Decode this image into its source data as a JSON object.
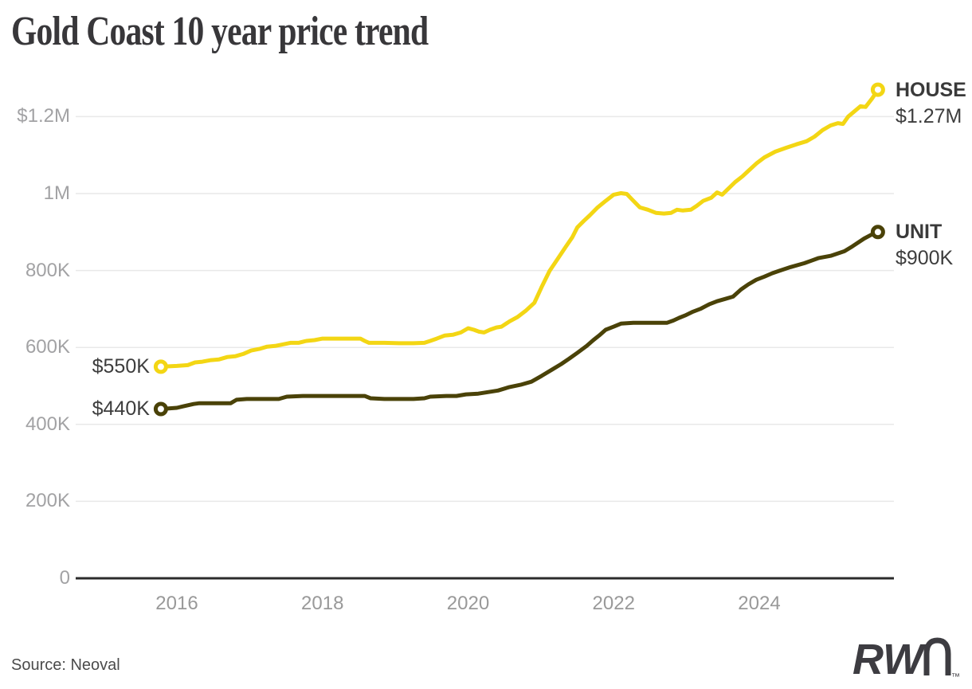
{
  "title": "Gold Coast 10 year price trend",
  "source": "Source: Neoval",
  "logo": {
    "text_bold": "RW",
    "text_light": "n",
    "trademark": "™"
  },
  "colors": {
    "house": "#f3d614",
    "unit": "#4a4208",
    "grid": "#e9e9e9",
    "axis": "#2b2b2b",
    "tick_text": "#a2a2a4",
    "label_text": "#3d3d3d",
    "title_text": "#38373a",
    "logo_text": "#3d3c41",
    "background": "#ffffff"
  },
  "chart_data": {
    "type": "line",
    "title": "Gold Coast 10 year price trend",
    "xlabel": "",
    "ylabel": "",
    "value_unit": "thousands of dollars",
    "grid": "horizontal-only",
    "legend_position": "inline-at-line-ends",
    "x_axis": {
      "range": [
        2015.7,
        2025.8
      ],
      "ticks": [
        2016,
        2018,
        2020,
        2022,
        2024
      ]
    },
    "y_axis": {
      "range": [
        0,
        1300
      ],
      "ticks": [
        {
          "label": "$1.2M",
          "value": 1200
        },
        {
          "label": "1M",
          "value": 1000
        },
        {
          "label": "800K",
          "value": 800
        },
        {
          "label": "600K",
          "value": 600
        },
        {
          "label": "400K",
          "value": 400
        },
        {
          "label": "200K",
          "value": 200
        },
        {
          "label": "0",
          "value": 0
        }
      ]
    },
    "series": [
      {
        "name": "HOUSE",
        "color": "#f3d614",
        "start_label": "$550K",
        "end_label": "$1.27M",
        "points": [
          [
            2015.78,
            550
          ],
          [
            2016.0,
            552
          ],
          [
            2016.15,
            554
          ],
          [
            2016.25,
            561
          ],
          [
            2016.35,
            563
          ],
          [
            2016.47,
            567
          ],
          [
            2016.58,
            569
          ],
          [
            2016.69,
            575
          ],
          [
            2016.8,
            577
          ],
          [
            2016.91,
            583
          ],
          [
            2017.02,
            592
          ],
          [
            2017.13,
            596
          ],
          [
            2017.24,
            602
          ],
          [
            2017.35,
            604
          ],
          [
            2017.46,
            608
          ],
          [
            2017.56,
            612
          ],
          [
            2017.67,
            612
          ],
          [
            2017.78,
            617
          ],
          [
            2017.89,
            619
          ],
          [
            2018.0,
            623
          ],
          [
            2018.15,
            623
          ],
          [
            2018.3,
            623
          ],
          [
            2018.45,
            623
          ],
          [
            2018.52,
            623
          ],
          [
            2018.58,
            617
          ],
          [
            2018.64,
            612
          ],
          [
            2018.85,
            612
          ],
          [
            2019.05,
            611
          ],
          [
            2019.25,
            611
          ],
          [
            2019.4,
            612
          ],
          [
            2019.48,
            617
          ],
          [
            2019.57,
            623
          ],
          [
            2019.68,
            631
          ],
          [
            2019.79,
            633
          ],
          [
            2019.9,
            639
          ],
          [
            2020.0,
            650
          ],
          [
            2020.08,
            646
          ],
          [
            2020.15,
            641
          ],
          [
            2020.22,
            639
          ],
          [
            2020.3,
            646
          ],
          [
            2020.39,
            652
          ],
          [
            2020.46,
            654
          ],
          [
            2020.57,
            668
          ],
          [
            2020.68,
            679
          ],
          [
            2020.79,
            695
          ],
          [
            2020.91,
            716
          ],
          [
            2021.01,
            757
          ],
          [
            2021.12,
            799
          ],
          [
            2021.23,
            830
          ],
          [
            2021.34,
            861
          ],
          [
            2021.43,
            886
          ],
          [
            2021.5,
            912
          ],
          [
            2021.59,
            929
          ],
          [
            2021.67,
            943
          ],
          [
            2021.78,
            964
          ],
          [
            2021.89,
            981
          ],
          [
            2022.0,
            997
          ],
          [
            2022.1,
            1001
          ],
          [
            2022.18,
            999
          ],
          [
            2022.25,
            985
          ],
          [
            2022.36,
            964
          ],
          [
            2022.47,
            958
          ],
          [
            2022.58,
            950
          ],
          [
            2022.69,
            948
          ],
          [
            2022.79,
            950
          ],
          [
            2022.87,
            958
          ],
          [
            2022.95,
            956
          ],
          [
            2023.06,
            958
          ],
          [
            2023.14,
            968
          ],
          [
            2023.23,
            981
          ],
          [
            2023.34,
            989
          ],
          [
            2023.42,
            1003
          ],
          [
            2023.49,
            997
          ],
          [
            2023.56,
            1010
          ],
          [
            2023.67,
            1030
          ],
          [
            2023.77,
            1045
          ],
          [
            2023.85,
            1059
          ],
          [
            2023.96,
            1078
          ],
          [
            2024.07,
            1094
          ],
          [
            2024.22,
            1109
          ],
          [
            2024.37,
            1119
          ],
          [
            2024.51,
            1128
          ],
          [
            2024.65,
            1136
          ],
          [
            2024.76,
            1148
          ],
          [
            2024.87,
            1165
          ],
          [
            2024.98,
            1177
          ],
          [
            2025.08,
            1183
          ],
          [
            2025.15,
            1181
          ],
          [
            2025.22,
            1200
          ],
          [
            2025.31,
            1214
          ],
          [
            2025.39,
            1227
          ],
          [
            2025.46,
            1225
          ],
          [
            2025.55,
            1247
          ],
          [
            2025.63,
            1270
          ]
        ]
      },
      {
        "name": "UNIT",
        "color": "#4a4208",
        "start_label": "$440K",
        "end_label": "$900K",
        "points": [
          [
            2015.78,
            440
          ],
          [
            2016.0,
            443
          ],
          [
            2016.09,
            447
          ],
          [
            2016.23,
            453
          ],
          [
            2016.31,
            455
          ],
          [
            2016.55,
            455
          ],
          [
            2016.74,
            455
          ],
          [
            2016.82,
            464
          ],
          [
            2016.96,
            466
          ],
          [
            2017.2,
            466
          ],
          [
            2017.4,
            466
          ],
          [
            2017.51,
            472
          ],
          [
            2017.73,
            474
          ],
          [
            2017.95,
            474
          ],
          [
            2018.2,
            474
          ],
          [
            2018.4,
            474
          ],
          [
            2018.58,
            474
          ],
          [
            2018.66,
            468
          ],
          [
            2018.85,
            466
          ],
          [
            2019.05,
            466
          ],
          [
            2019.25,
            466
          ],
          [
            2019.4,
            468
          ],
          [
            2019.48,
            472
          ],
          [
            2019.7,
            474
          ],
          [
            2019.84,
            474
          ],
          [
            2019.97,
            478
          ],
          [
            2020.14,
            480
          ],
          [
            2020.28,
            484
          ],
          [
            2020.41,
            488
          ],
          [
            2020.57,
            497
          ],
          [
            2020.72,
            503
          ],
          [
            2020.87,
            511
          ],
          [
            2021.01,
            526
          ],
          [
            2021.15,
            542
          ],
          [
            2021.28,
            557
          ],
          [
            2021.39,
            571
          ],
          [
            2021.5,
            586
          ],
          [
            2021.63,
            604
          ],
          [
            2021.72,
            619
          ],
          [
            2021.8,
            631
          ],
          [
            2021.89,
            646
          ],
          [
            2022.0,
            654
          ],
          [
            2022.1,
            662
          ],
          [
            2022.27,
            664
          ],
          [
            2022.45,
            664
          ],
          [
            2022.6,
            664
          ],
          [
            2022.73,
            664
          ],
          [
            2022.82,
            670
          ],
          [
            2022.9,
            677
          ],
          [
            2022.98,
            683
          ],
          [
            2023.09,
            693
          ],
          [
            2023.2,
            701
          ],
          [
            2023.31,
            712
          ],
          [
            2023.42,
            720
          ],
          [
            2023.53,
            726
          ],
          [
            2023.64,
            732
          ],
          [
            2023.75,
            751
          ],
          [
            2023.85,
            764
          ],
          [
            2023.96,
            776
          ],
          [
            2024.07,
            784
          ],
          [
            2024.18,
            793
          ],
          [
            2024.27,
            799
          ],
          [
            2024.43,
            809
          ],
          [
            2024.62,
            819
          ],
          [
            2024.81,
            832
          ],
          [
            2024.98,
            838
          ],
          [
            2025.17,
            850
          ],
          [
            2025.28,
            863
          ],
          [
            2025.44,
            883
          ],
          [
            2025.55,
            894
          ],
          [
            2025.63,
            900
          ]
        ]
      }
    ]
  }
}
